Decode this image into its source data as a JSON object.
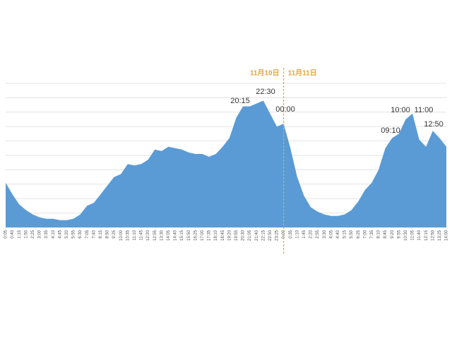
{
  "chart_data": {
    "type": "area",
    "categories": [
      "0:05",
      "0:40",
      "1:15",
      "1:50",
      "2:25",
      "3:00",
      "3:35",
      "4:10",
      "4:45",
      "5:20",
      "5:55",
      "6:30",
      "7:05",
      "7:40",
      "8:15",
      "8:50",
      "9:25",
      "10:00",
      "10:35",
      "11:10",
      "11:45",
      "12:20",
      "12:55",
      "13:30",
      "14:05",
      "14:40",
      "15:15",
      "15:50",
      "16:25",
      "17:00",
      "17:35",
      "18:10",
      "18:45",
      "19:20",
      "19:55",
      "20:30",
      "21:05",
      "21:40",
      "22:15",
      "22:50",
      "23:25",
      "0:00",
      "0:35",
      "1:10",
      "1:45",
      "2:20",
      "2:55",
      "3:30",
      "4:05",
      "4:40",
      "5:15",
      "5:50",
      "6:25",
      "7:00",
      "7:35",
      "8:10",
      "8:45",
      "9:20",
      "9:55",
      "10:30",
      "11:05",
      "11:40",
      "12:15",
      "12:50",
      "13:25",
      "14:00"
    ],
    "series": [
      {
        "color": "#5b9bd5",
        "values": [
          31,
          23,
          16,
          12,
          9,
          7,
          6,
          6,
          5,
          5,
          6,
          9,
          15,
          17,
          23,
          29,
          35,
          37,
          44,
          43,
          44,
          47,
          54,
          53,
          56,
          55,
          54,
          52,
          51,
          51,
          49,
          51,
          56,
          62,
          76,
          84,
          84,
          86,
          88,
          79,
          70,
          72,
          55,
          35,
          22,
          14,
          11,
          9,
          8,
          8,
          9,
          12,
          18,
          26,
          31,
          40,
          55,
          62,
          65,
          75,
          79,
          61,
          56,
          67,
          62,
          56
        ]
      }
    ],
    "ylim": [
      0,
      100
    ],
    "yticks": [
      0,
      10,
      20,
      30,
      40,
      50,
      60,
      70,
      80,
      90,
      100
    ],
    "grid": true,
    "divider_labels": [
      "11月10日",
      "11月11日"
    ],
    "divider_color": "#e8a33d",
    "annotations": [
      "20:15",
      "22:30",
      "00:00",
      "09:10",
      "10:00",
      "11:00",
      "12:50"
    ]
  }
}
